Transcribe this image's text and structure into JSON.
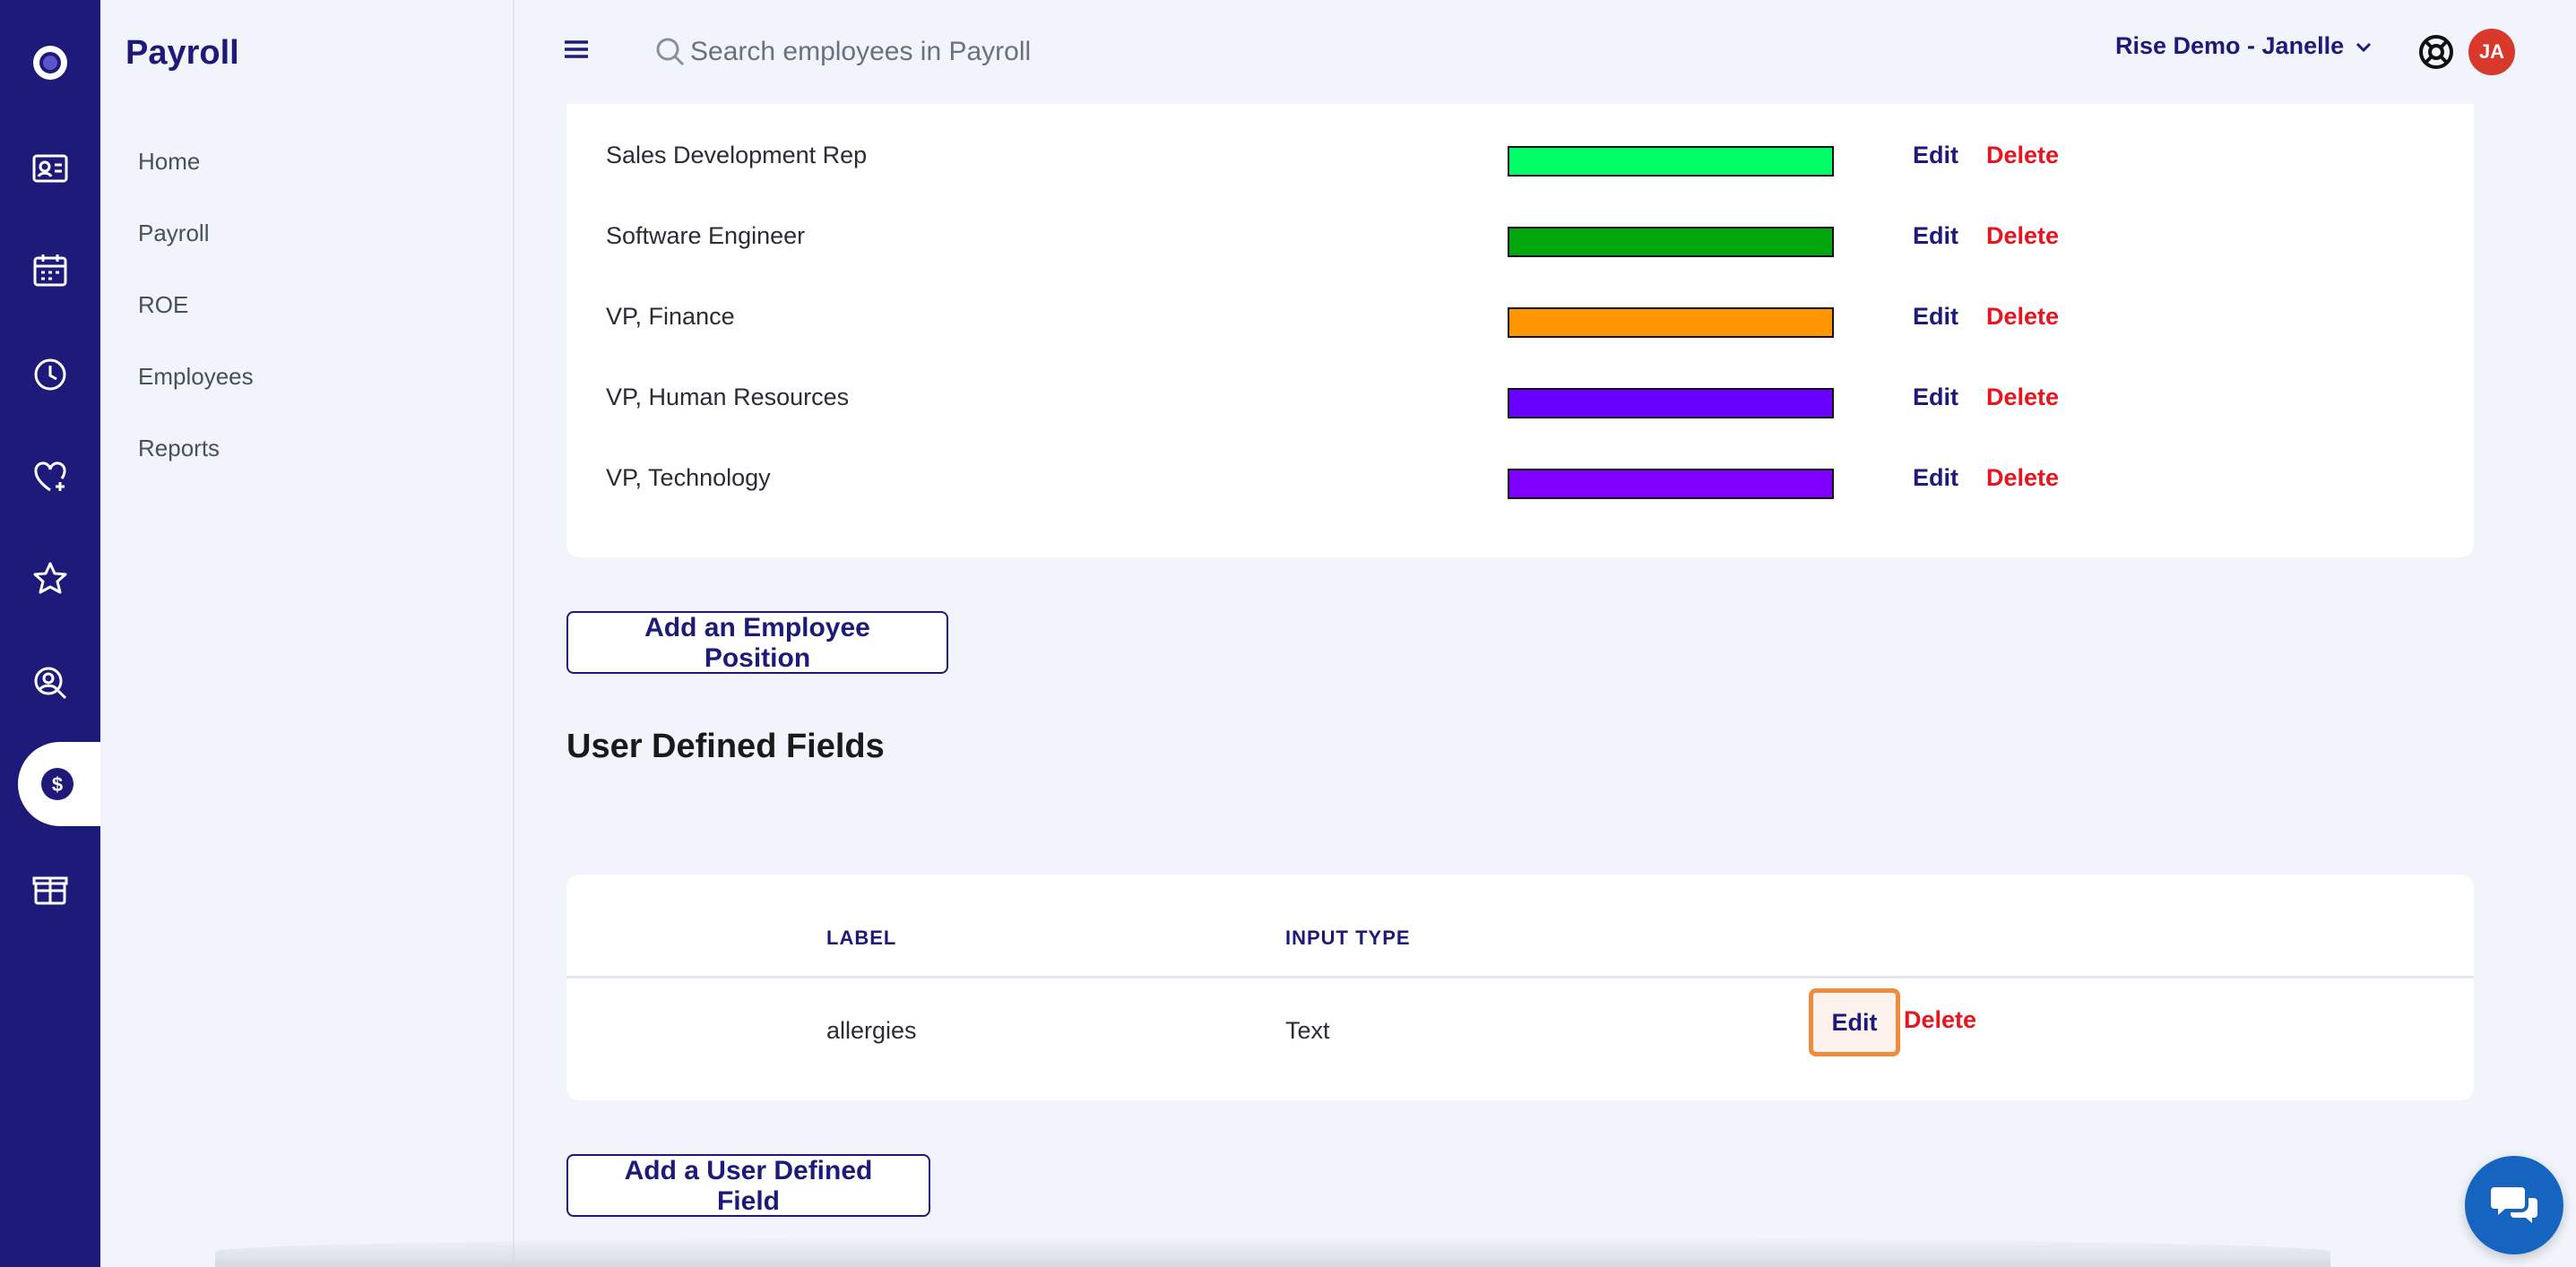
{
  "app": {
    "section_title": "Payroll"
  },
  "sidebar": {
    "items": [
      {
        "label": "Home"
      },
      {
        "label": "Payroll"
      },
      {
        "label": "ROE"
      },
      {
        "label": "Employees"
      },
      {
        "label": "Reports"
      }
    ]
  },
  "rail": {
    "icons": [
      "logo-icon",
      "contact-card-icon",
      "calendar-icon",
      "clock-icon",
      "heart-icon",
      "star-icon",
      "search-person-icon",
      "dollar-icon",
      "gift-box-icon"
    ],
    "active": "dollar-icon"
  },
  "topbar": {
    "search_placeholder": "Search employees in Payroll",
    "account_label": "Rise Demo - Janelle",
    "avatar_initials": "JA"
  },
  "positions": {
    "rows": [
      {
        "name": "Sales Development Rep",
        "color": "#00ff66",
        "edit": "Edit",
        "delete": "Delete"
      },
      {
        "name": "Software Engineer",
        "color": "#00a80e",
        "edit": "Edit",
        "delete": "Delete"
      },
      {
        "name": "VP, Finance",
        "color": "#ff9500",
        "edit": "Edit",
        "delete": "Delete"
      },
      {
        "name": "VP, Human Resources",
        "color": "#6a00ff",
        "edit": "Edit",
        "delete": "Delete"
      },
      {
        "name": "VP, Technology",
        "color": "#8000ff",
        "edit": "Edit",
        "delete": "Delete"
      }
    ],
    "add_button": "Add an Employee Position"
  },
  "udf": {
    "heading": "User Defined Fields",
    "columns": {
      "label": "LABEL",
      "input_type": "INPUT TYPE"
    },
    "rows": [
      {
        "label": "allergies",
        "input_type": "Text",
        "edit": "Edit",
        "delete": "Delete"
      }
    ],
    "add_button": "Add a User Defined Field"
  },
  "colors": {
    "brand": "#1e1a7a",
    "danger": "#e8141e",
    "highlight": "#f08a3c"
  }
}
